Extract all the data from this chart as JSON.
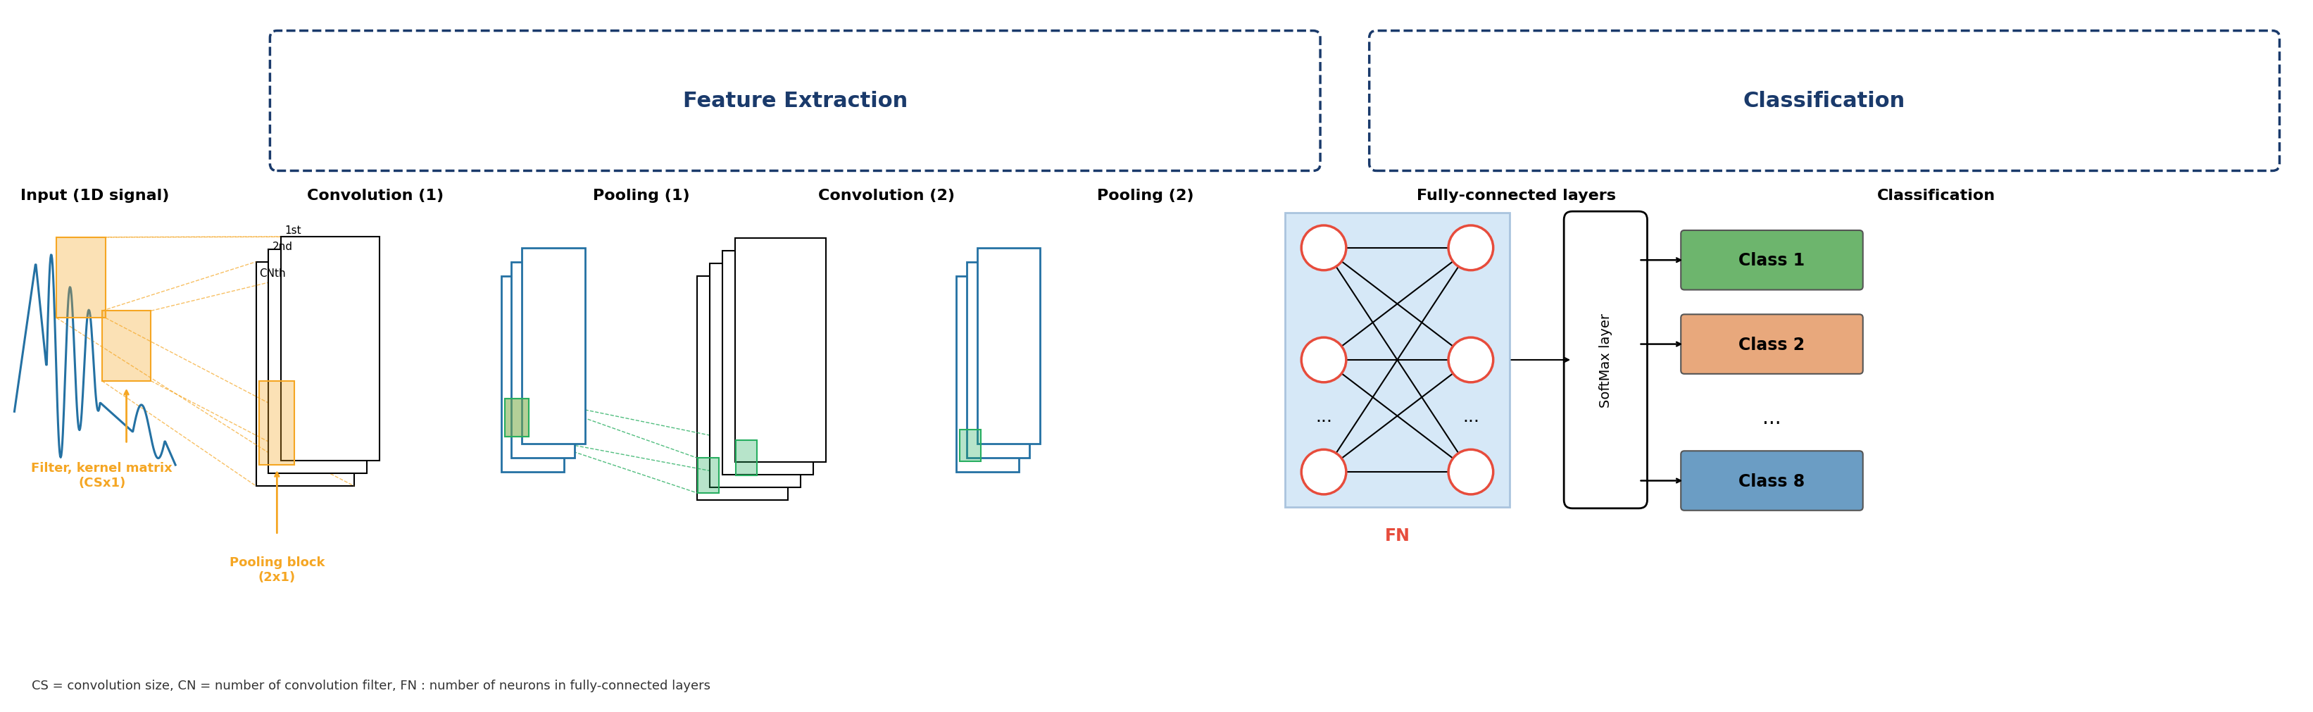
{
  "bg_color": "#ffffff",
  "title_feat_extract": "Feature Extraction",
  "title_classification": "Classification",
  "section_labels": [
    "Input (1D signal)",
    "Convolution (1)",
    "Pooling (1)",
    "Convolution (2)",
    "Pooling (2)",
    "Fully-connected layers",
    "Classification"
  ],
  "class_labels": [
    "Class 1",
    "Class 2",
    "...",
    "Class 8"
  ],
  "class_colors": [
    "#6db56d",
    "#e8a87c",
    "#ffffff",
    "#6b9dc4"
  ],
  "filter_label": "Filter, kernel matrix\n(CSx1)",
  "pooling_label": "Pooling block\n(2x1)",
  "fn_label": "FN",
  "softmax_label": "SoftMax layer",
  "footnote": "CS = convolution size, CN = number of convolution filter, FN : number of neurons in fully-connected layers",
  "orange_color": "#f5a623",
  "blue_color": "#1a5fa8",
  "dark_blue": "#1a3a6b",
  "signal_blue": "#2471a3",
  "green_color": "#2ecc71",
  "red_color": "#e74c3c",
  "conv_labels": [
    "1st",
    "2nd",
    "CNth"
  ]
}
